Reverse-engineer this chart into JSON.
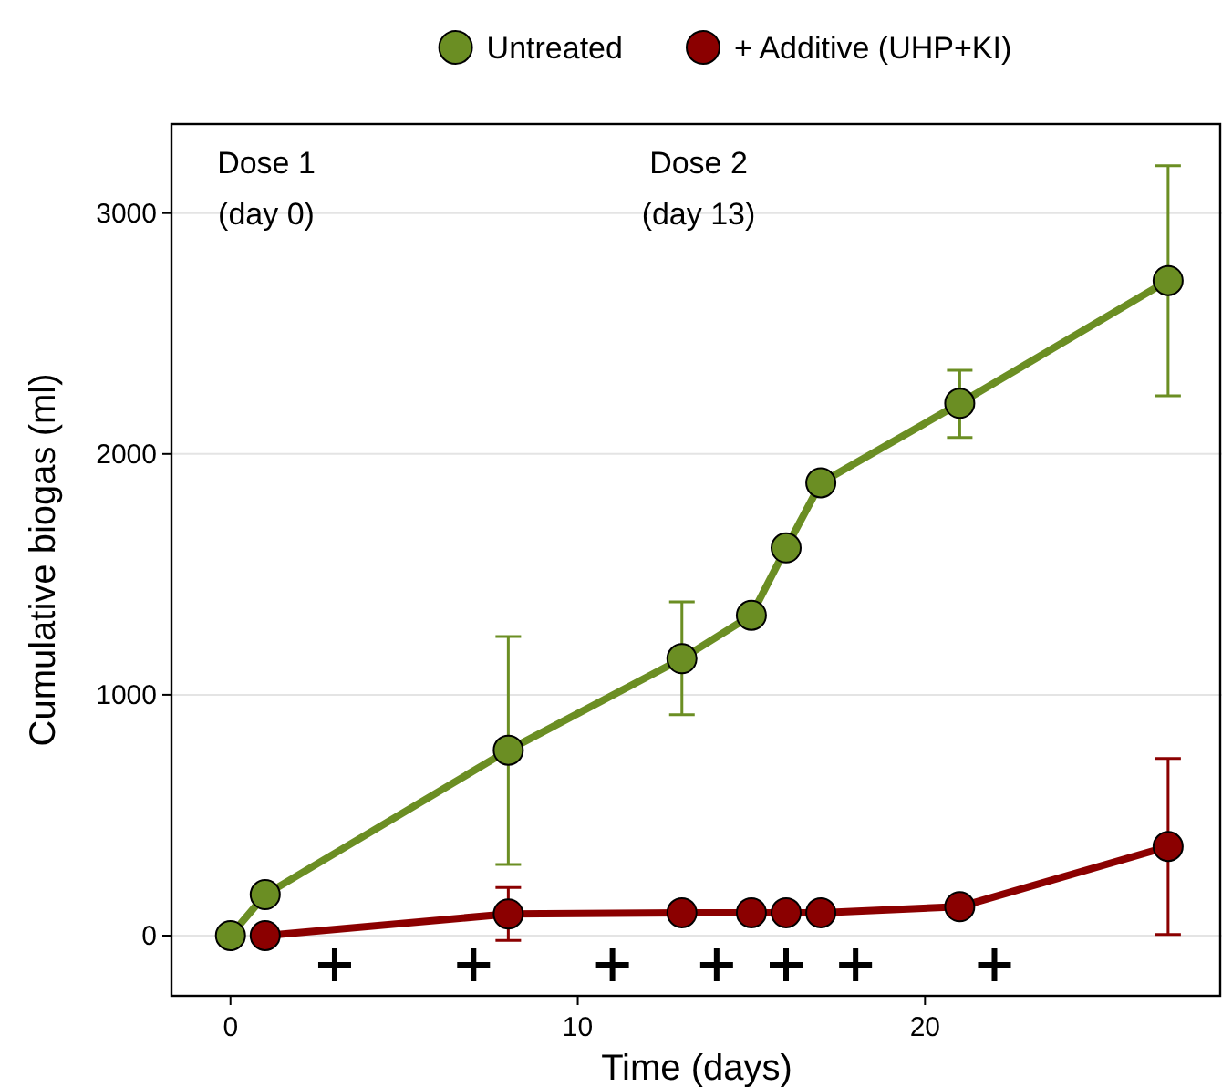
{
  "chart_data": {
    "type": "line",
    "xlabel": "Time (days)",
    "ylabel": "Cumulative biogas (ml)",
    "xlim": [
      -1.7,
      28.5
    ],
    "xticks": [
      0,
      10,
      20
    ],
    "ylim": [
      -250,
      3370
    ],
    "yticks": [
      0,
      1000,
      2000,
      3000
    ],
    "grid": "y",
    "legend": "top",
    "marker": "circle",
    "line_style": "solid",
    "annotations": [
      "Dose 1\n(day 0)",
      "Dose 2\n(day 13)"
    ],
    "series": [
      {
        "name": "Untreated",
        "color": "#6b8e23",
        "x": [
          0,
          1,
          8,
          13,
          15,
          16,
          17,
          21,
          27
        ],
        "values": [
          0,
          170,
          770,
          1150,
          1330,
          1610,
          1880,
          2210,
          2720
        ],
        "errors": [
          null,
          null,
          [
            295,
            1242
          ],
          [
            917,
            1386
          ],
          null,
          null,
          null,
          [
            2068,
            2348
          ],
          [
            2242,
            3197
          ]
        ]
      },
      {
        "name": "+ Additive (UHP+KI)",
        "color": "#8b0000",
        "x": [
          1,
          8,
          13,
          15,
          16,
          17,
          21,
          27
        ],
        "values": [
          0,
          90,
          95,
          95,
          95,
          95,
          120,
          370
        ],
        "errors": [
          null,
          [
            -20,
            200
          ],
          null,
          null,
          null,
          null,
          null,
          [
            5,
            735
          ]
        ]
      },
      {
        "type": "scatter",
        "marker": "cross",
        "color": "#000000",
        "x": [
          3,
          7,
          11,
          14,
          16,
          18,
          22
        ],
        "values": [
          -121,
          -121,
          -121,
          -121,
          -121,
          -121,
          -121
        ]
      }
    ]
  }
}
